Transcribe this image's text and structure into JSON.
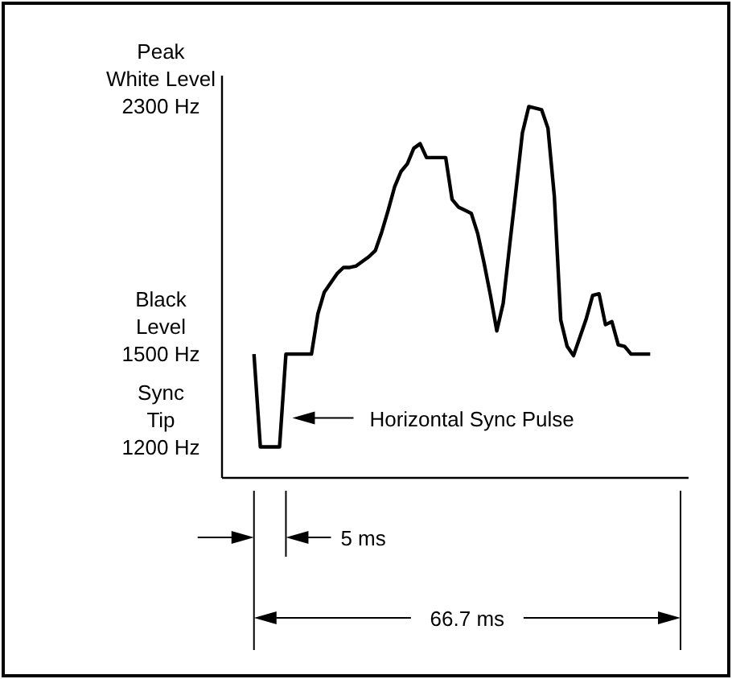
{
  "chart_data": {
    "type": "line",
    "categories": [
      null,
      null,
      null,
      null,
      null,
      null,
      null,
      null,
      null,
      null,
      null,
      null,
      null,
      null,
      null,
      null,
      null,
      null,
      null,
      null,
      null,
      null,
      null,
      null,
      null,
      null,
      null,
      null,
      null,
      null,
      null,
      null,
      null,
      null,
      null,
      null,
      null,
      null,
      null,
      null,
      null,
      null,
      null,
      null,
      null,
      null,
      null,
      null,
      null,
      null,
      null,
      null,
      null,
      null,
      null,
      null,
      null,
      null,
      null,
      null,
      null,
      null,
      null
    ],
    "series": [
      {
        "color": "#000000",
        "values": [
          1500,
          1200,
          1200,
          1200,
          1200,
          1500,
          1500,
          1500,
          1500,
          1500,
          1630,
          1700,
          1730,
          1760,
          1780,
          1780,
          1785,
          1800,
          1815,
          1835,
          1895,
          1965,
          2040,
          2090,
          2115,
          2165,
          2180,
          2135,
          2135,
          2135,
          2135,
          2000,
          1975,
          1965,
          1955,
          1890,
          1795,
          1690,
          1575,
          1665,
          1850,
          2030,
          2215,
          2300,
          2295,
          2290,
          2230,
          2010,
          1610,
          1525,
          1495,
          1555,
          1615,
          1690,
          1695,
          1595,
          1605,
          1530,
          1525,
          1500,
          1500,
          1500,
          1500
        ]
      }
    ],
    "ylim": [
      1100,
      2400
    ],
    "yticks": [
      {
        "value": 1200,
        "label": "1200 Hz"
      },
      {
        "value": 1500,
        "label": "1500 Hz"
      },
      {
        "value": 2300,
        "label": "2300 Hz"
      }
    ],
    "tick_labels": "y",
    "grid": false,
    "marker": "none",
    "line_style": "solid",
    "annotations": [
      "Peak White Level",
      "Black Level",
      "Sync Tip",
      "Horizontal Sync Pulse",
      "5 ms",
      "66.7 ms"
    ]
  }
}
